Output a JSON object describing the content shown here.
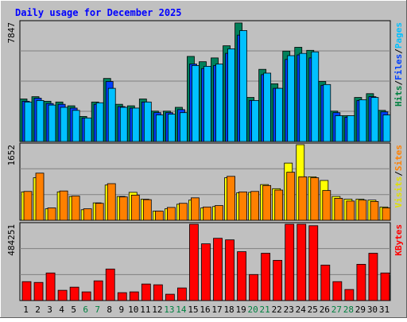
{
  "title": "Daily usage for December 2025",
  "panels": {
    "top": {
      "max_label": "7847",
      "legend": [
        {
          "text": "Hits",
          "color": "#008040"
        },
        {
          "text": "/",
          "color": "#000000"
        },
        {
          "text": "Files",
          "color": "#0040ff"
        },
        {
          "text": "/",
          "color": "#000000"
        },
        {
          "text": "Pages",
          "color": "#00c0ff"
        }
      ]
    },
    "middle": {
      "max_label": "1652",
      "legend": [
        {
          "text": "Visits",
          "color": "#e0e000"
        },
        {
          "text": "/",
          "color": "#000000"
        },
        {
          "text": "Sites",
          "color": "#ff8000"
        }
      ]
    },
    "bottom": {
      "max_label": "484251",
      "legend": [
        {
          "text": "KBytes",
          "color": "#ff0000"
        }
      ]
    }
  },
  "colors": {
    "hits": "#00805a",
    "files": "#0040ff",
    "pages": "#00c0ff",
    "visits": "#ffff00",
    "sites": "#ff8000",
    "kbytes": "#ff0000",
    "weekend_label": "#008040",
    "weekday_label": "#000000"
  },
  "chart_data": [
    {
      "type": "bar",
      "title": "Daily usage for December 2025",
      "categories": [
        "1",
        "2",
        "3",
        "4",
        "5",
        "6",
        "7",
        "8",
        "9",
        "10",
        "11",
        "12",
        "13",
        "14",
        "15",
        "16",
        "17",
        "18",
        "19",
        "20",
        "21",
        "22",
        "23",
        "24",
        "25",
        "26",
        "27",
        "28",
        "29",
        "30",
        "31"
      ],
      "weekend_days": [
        "6",
        "7",
        "13",
        "14",
        "20",
        "21",
        "27",
        "28"
      ],
      "ylim": [
        0,
        7847
      ],
      "series": [
        {
          "name": "Hits",
          "values": [
            2800,
            2950,
            2650,
            2600,
            2350,
            1650,
            2600,
            4150,
            2450,
            2350,
            2800,
            2000,
            2000,
            2250,
            5600,
            5250,
            5500,
            6300,
            7800,
            2900,
            4750,
            3800,
            5950,
            6200,
            6000,
            3950,
            2000,
            1700,
            2900,
            3150,
            2050
          ]
        },
        {
          "name": "Files",
          "values": [
            2650,
            2850,
            2500,
            2450,
            2200,
            1550,
            2450,
            3950,
            2300,
            2200,
            2600,
            1900,
            1900,
            2100,
            5100,
            4800,
            5000,
            5800,
            7000,
            2700,
            4400,
            3500,
            5400,
            5700,
            5500,
            3700,
            1900,
            1600,
            2700,
            2950,
            1950
          ]
        },
        {
          "name": "Pages",
          "values": [
            2600,
            2700,
            2400,
            2250,
            2050,
            1550,
            2550,
            3500,
            2250,
            2200,
            2600,
            1750,
            1800,
            1900,
            5000,
            4950,
            5100,
            6100,
            7300,
            2700,
            4500,
            3500,
            5650,
            5800,
            5900,
            3750,
            1700,
            1700,
            2750,
            2900,
            1750
          ]
        }
      ]
    },
    {
      "type": "bar",
      "categories": [
        "1",
        "2",
        "3",
        "4",
        "5",
        "6",
        "7",
        "8",
        "9",
        "10",
        "11",
        "12",
        "13",
        "14",
        "15",
        "16",
        "17",
        "18",
        "19",
        "20",
        "21",
        "22",
        "23",
        "24",
        "25",
        "26",
        "27",
        "28",
        "29",
        "30",
        "31"
      ],
      "ylim": [
        0,
        1652
      ],
      "series": [
        {
          "name": "Visits",
          "values": [
            620,
            930,
            250,
            620,
            520,
            230,
            380,
            770,
            520,
            610,
            460,
            200,
            250,
            350,
            440,
            270,
            300,
            930,
            600,
            610,
            780,
            690,
            1250,
            1652,
            950,
            870,
            520,
            460,
            460,
            440,
            290
          ]
        },
        {
          "name": "Sites",
          "values": [
            630,
            1030,
            270,
            640,
            530,
            250,
            370,
            800,
            510,
            550,
            450,
            200,
            280,
            370,
            490,
            290,
            320,
            960,
            620,
            630,
            760,
            660,
            1050,
            950,
            930,
            650,
            480,
            420,
            440,
            410,
            270
          ]
        }
      ]
    },
    {
      "type": "bar",
      "categories": [
        "1",
        "2",
        "3",
        "4",
        "5",
        "6",
        "7",
        "8",
        "9",
        "10",
        "11",
        "12",
        "13",
        "14",
        "15",
        "16",
        "17",
        "18",
        "19",
        "20",
        "21",
        "22",
        "23",
        "24",
        "25",
        "26",
        "27",
        "28",
        "29",
        "30",
        "31"
      ],
      "ylim": [
        0,
        484251
      ],
      "series": [
        {
          "name": "KBytes",
          "values": [
            120000,
            115000,
            175000,
            65000,
            85000,
            55000,
            125000,
            200000,
            50000,
            55000,
            105000,
            100000,
            40000,
            80000,
            484251,
            360000,
            395000,
            385000,
            310000,
            165000,
            300000,
            255000,
            484251,
            484251,
            475000,
            225000,
            120000,
            70000,
            230000,
            300000,
            175000
          ]
        }
      ]
    }
  ]
}
